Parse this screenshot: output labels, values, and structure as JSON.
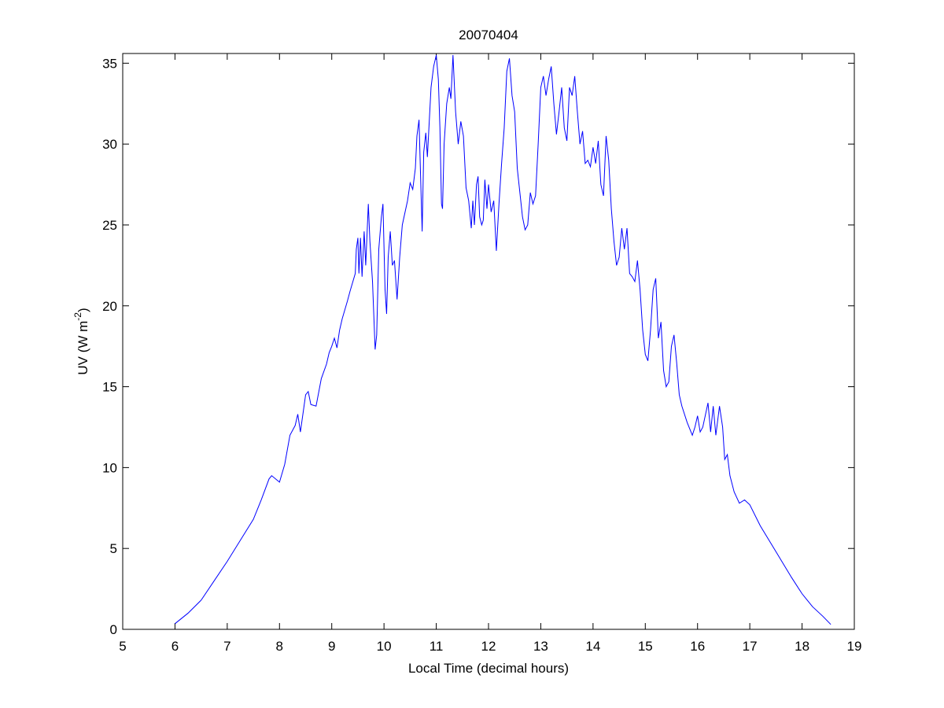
{
  "chart_data": {
    "type": "line",
    "title": "20070404",
    "xlabel": "Local Time (decimal hours)",
    "ylabel": {
      "text": "UV (W m",
      "sup": "-2",
      "tail": ")"
    },
    "color": "#0000ff",
    "xlim": [
      5,
      19
    ],
    "xticks": [
      5,
      6,
      7,
      8,
      9,
      10,
      11,
      12,
      13,
      14,
      15,
      16,
      17,
      18,
      19
    ],
    "ylim": [
      0,
      35.6
    ],
    "yticks": [
      0,
      5,
      10,
      15,
      20,
      25,
      30,
      35
    ],
    "x": [
      6.0,
      6.25,
      6.5,
      6.75,
      7.0,
      7.25,
      7.5,
      7.65,
      7.8,
      7.85,
      8.0,
      8.1,
      8.2,
      8.3,
      8.35,
      8.4,
      8.5,
      8.55,
      8.6,
      8.7,
      8.8,
      8.9,
      8.95,
      9.0,
      9.05,
      9.1,
      9.15,
      9.2,
      9.3,
      9.35,
      9.45,
      9.47,
      9.5,
      9.52,
      9.55,
      9.58,
      9.62,
      9.65,
      9.7,
      9.73,
      9.78,
      9.83,
      9.86,
      9.9,
      9.95,
      9.98,
      10.02,
      10.05,
      10.08,
      10.12,
      10.16,
      10.2,
      10.25,
      10.3,
      10.35,
      10.45,
      10.5,
      10.55,
      10.6,
      10.63,
      10.67,
      10.7,
      10.73,
      10.76,
      10.8,
      10.83,
      10.9,
      10.95,
      11.0,
      11.04,
      11.07,
      11.1,
      11.12,
      11.15,
      11.2,
      11.25,
      11.28,
      11.32,
      11.37,
      11.42,
      11.47,
      11.52,
      11.57,
      11.62,
      11.67,
      11.7,
      11.73,
      11.77,
      11.8,
      11.83,
      11.87,
      11.9,
      11.93,
      11.97,
      12.0,
      12.05,
      12.1,
      12.15,
      12.2,
      12.25,
      12.3,
      12.35,
      12.4,
      12.45,
      12.5,
      12.55,
      12.6,
      12.65,
      12.7,
      12.75,
      12.8,
      12.85,
      12.9,
      12.95,
      13.0,
      13.05,
      13.1,
      13.15,
      13.2,
      13.25,
      13.3,
      13.35,
      13.4,
      13.45,
      13.5,
      13.55,
      13.6,
      13.65,
      13.7,
      13.75,
      13.8,
      13.85,
      13.9,
      13.95,
      14.0,
      14.05,
      14.1,
      14.15,
      14.2,
      14.25,
      14.3,
      14.35,
      14.4,
      14.45,
      14.5,
      14.55,
      14.6,
      14.65,
      14.7,
      14.75,
      14.8,
      14.85,
      14.9,
      14.95,
      15.0,
      15.05,
      15.1,
      15.15,
      15.2,
      15.25,
      15.3,
      15.35,
      15.4,
      15.45,
      15.5,
      15.55,
      15.6,
      15.65,
      15.7,
      15.8,
      15.9,
      15.95,
      16.0,
      16.05,
      16.1,
      16.2,
      16.25,
      16.3,
      16.35,
      16.42,
      16.48,
      16.52,
      16.57,
      16.62,
      16.7,
      16.8,
      16.9,
      17.0,
      17.2,
      17.5,
      17.8,
      18.0,
      18.2,
      18.4,
      18.55
    ],
    "values": [
      0.35,
      1.0,
      1.8,
      3.0,
      4.2,
      5.5,
      6.8,
      8.0,
      9.3,
      9.5,
      9.1,
      10.2,
      12.0,
      12.6,
      13.3,
      12.2,
      14.5,
      14.7,
      13.9,
      13.8,
      15.5,
      16.4,
      17.1,
      17.5,
      18.0,
      17.4,
      18.5,
      19.2,
      20.3,
      20.9,
      22.0,
      23.5,
      24.2,
      22.0,
      24.2,
      21.8,
      24.6,
      22.5,
      26.3,
      24.0,
      21.5,
      17.3,
      18.2,
      23.5,
      25.5,
      26.3,
      21.0,
      19.5,
      23.0,
      24.6,
      22.5,
      22.8,
      20.4,
      23.0,
      25.0,
      26.5,
      27.6,
      27.2,
      28.5,
      30.5,
      31.5,
      28.0,
      24.6,
      29.5,
      30.7,
      29.2,
      33.5,
      34.8,
      35.5,
      34.0,
      31.0,
      26.3,
      26.0,
      30.0,
      32.5,
      33.5,
      32.8,
      35.5,
      32.0,
      30.0,
      31.4,
      30.5,
      27.3,
      26.5,
      24.8,
      26.5,
      25.0,
      27.5,
      28.0,
      25.5,
      25.0,
      25.3,
      27.8,
      26.0,
      27.5,
      25.8,
      26.5,
      23.4,
      26.3,
      28.8,
      31.0,
      34.5,
      35.3,
      33.0,
      32.0,
      28.5,
      27.0,
      25.5,
      24.7,
      25.0,
      27.0,
      26.3,
      26.8,
      30.0,
      33.5,
      34.2,
      33.0,
      34.0,
      34.8,
      32.5,
      30.6,
      32.0,
      33.5,
      31.0,
      30.2,
      33.5,
      33.0,
      34.2,
      32.0,
      30.0,
      30.8,
      28.8,
      29.0,
      28.6,
      29.8,
      28.8,
      30.2,
      27.5,
      26.8,
      30.5,
      29.0,
      26.0,
      24.0,
      22.5,
      23.0,
      24.8,
      23.5,
      24.8,
      22.0,
      21.8,
      21.5,
      22.8,
      21.0,
      18.5,
      17.0,
      16.6,
      18.5,
      21.0,
      21.7,
      18.0,
      19.0,
      16.0,
      15.0,
      15.3,
      17.5,
      18.2,
      16.5,
      14.5,
      13.8,
      12.8,
      12.0,
      12.5,
      13.2,
      12.2,
      12.5,
      14.0,
      12.2,
      13.8,
      12.0,
      13.8,
      12.5,
      10.5,
      10.8,
      9.5,
      8.5,
      7.8,
      8.0,
      7.7,
      6.4,
      4.8,
      3.2,
      2.2,
      1.4,
      0.8,
      0.3
    ]
  }
}
